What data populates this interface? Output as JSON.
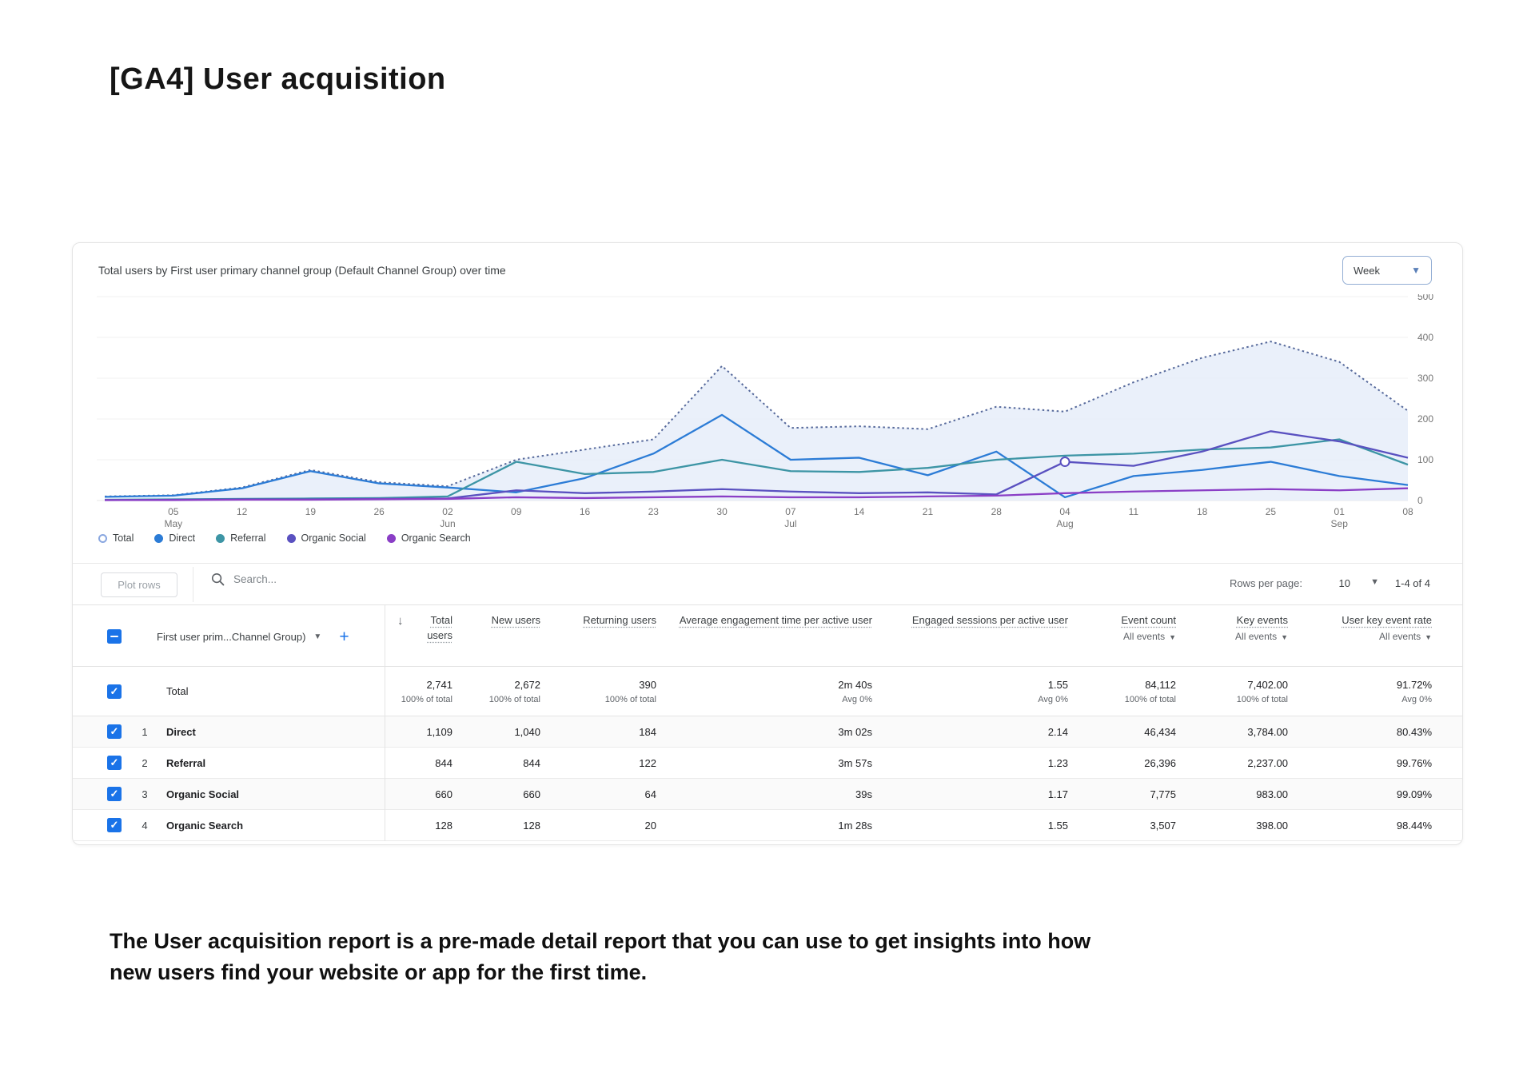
{
  "page": {
    "title": "[GA4] User acquisition",
    "footer_line1": "The User acquisition report is a pre-made detail report that you can use to get insights into how",
    "footer_line2": "new users find your website or app for the first time."
  },
  "chart": {
    "title": "Total users by First user primary channel group (Default Channel Group) over time",
    "interval_value": "Week"
  },
  "chart_data": {
    "type": "line",
    "title": "Total users by First user primary channel group (Default Channel Group) over time",
    "xlabel": "",
    "ylabel": "Total users",
    "ylim": [
      0,
      500
    ],
    "yticks": [
      0,
      100,
      200,
      300,
      400,
      500
    ],
    "grid": "horizontal",
    "legend_position": "bottom-left",
    "ticks": [
      {
        "day": ""
      },
      {
        "day": "05",
        "month": "May"
      },
      {
        "day": "12"
      },
      {
        "day": "19"
      },
      {
        "day": "26"
      },
      {
        "day": "02",
        "month": "Jun"
      },
      {
        "day": "09"
      },
      {
        "day": "16"
      },
      {
        "day": "23"
      },
      {
        "day": "30"
      },
      {
        "day": "07",
        "month": "Jul"
      },
      {
        "day": "14"
      },
      {
        "day": "21"
      },
      {
        "day": "28"
      },
      {
        "day": "04",
        "month": "Aug"
      },
      {
        "day": "11"
      },
      {
        "day": "18"
      },
      {
        "day": "25"
      },
      {
        "day": "01",
        "month": "Sep"
      },
      {
        "day": "08"
      }
    ],
    "series": [
      {
        "name": "Total",
        "color": "#56699b",
        "style": "dotted",
        "fill": "#e6edf9",
        "legend": "open",
        "legend_color": "#89a7e0",
        "values": [
          10,
          13,
          32,
          75,
          45,
          35,
          100,
          125,
          150,
          330,
          178,
          182,
          175,
          230,
          218,
          290,
          350,
          390,
          340,
          220
        ]
      },
      {
        "name": "Direct",
        "color": "#2c7cd6",
        "style": "solid",
        "legend": "filled",
        "values": [
          9,
          12,
          30,
          72,
          42,
          32,
          20,
          55,
          115,
          210,
          100,
          105,
          62,
          120,
          8,
          60,
          75,
          95,
          60,
          38
        ]
      },
      {
        "name": "Referral",
        "color": "#3d95a5",
        "style": "solid",
        "legend": "filled",
        "values": [
          2,
          3,
          4,
          5,
          6,
          10,
          95,
          65,
          70,
          100,
          72,
          70,
          80,
          100,
          110,
          115,
          125,
          130,
          150,
          88
        ]
      },
      {
        "name": "Organic Social",
        "color": "#5a51c0",
        "style": "solid",
        "legend": "filled",
        "marker_index": 14,
        "values": [
          1,
          2,
          3,
          3,
          4,
          5,
          25,
          18,
          22,
          28,
          22,
          18,
          20,
          15,
          95,
          85,
          120,
          170,
          145,
          105
        ]
      },
      {
        "name": "Organic Search",
        "color": "#8a3ec6",
        "style": "solid",
        "legend": "filled",
        "values": [
          1,
          1,
          2,
          2,
          3,
          4,
          8,
          6,
          8,
          10,
          8,
          8,
          10,
          12,
          18,
          22,
          25,
          28,
          25,
          30
        ]
      }
    ]
  },
  "toolbar": {
    "plot_rows_label": "Plot rows",
    "search_placeholder": "Search...",
    "rows_per_page_label": "Rows per page:",
    "rows_per_page_value": "10",
    "pagination": "1-4 of 4"
  },
  "table": {
    "dimension_header": "First user prim...Channel Group)",
    "add_button": "+",
    "sort_arrow": "↓",
    "columns": [
      {
        "title": "Total users",
        "sub": ""
      },
      {
        "title": "New users",
        "sub": ""
      },
      {
        "title": "Returning users",
        "sub": ""
      },
      {
        "title": "Average engagement time per active user",
        "sub": ""
      },
      {
        "title": "Engaged sessions per active user",
        "sub": ""
      },
      {
        "title": "Event count",
        "sub": "All events"
      },
      {
        "title": "Key events",
        "sub": "All events"
      },
      {
        "title": "User key event rate",
        "sub": "All events"
      }
    ],
    "total_row": {
      "name": "Total",
      "cells": [
        {
          "value": "2,741",
          "sub": "100% of total"
        },
        {
          "value": "2,672",
          "sub": "100% of total"
        },
        {
          "value": "390",
          "sub": "100% of total"
        },
        {
          "value": "2m 40s",
          "sub": "Avg 0%"
        },
        {
          "value": "1.55",
          "sub": "Avg 0%"
        },
        {
          "value": "84,112",
          "sub": "100% of total"
        },
        {
          "value": "7,402.00",
          "sub": "100% of total"
        },
        {
          "value": "91.72%",
          "sub": "Avg 0%"
        }
      ]
    },
    "rows": [
      {
        "index": "1",
        "name": "Direct",
        "cells": [
          "1,109",
          "1,040",
          "184",
          "3m 02s",
          "2.14",
          "46,434",
          "3,784.00",
          "80.43%"
        ]
      },
      {
        "index": "2",
        "name": "Referral",
        "cells": [
          "844",
          "844",
          "122",
          "3m 57s",
          "1.23",
          "26,396",
          "2,237.00",
          "99.76%"
        ]
      },
      {
        "index": "3",
        "name": "Organic Social",
        "cells": [
          "660",
          "660",
          "64",
          "39s",
          "1.17",
          "7,775",
          "983.00",
          "99.09%"
        ]
      },
      {
        "index": "4",
        "name": "Organic Search",
        "cells": [
          "128",
          "128",
          "20",
          "1m 28s",
          "1.55",
          "3,507",
          "398.00",
          "98.44%"
        ]
      }
    ]
  }
}
